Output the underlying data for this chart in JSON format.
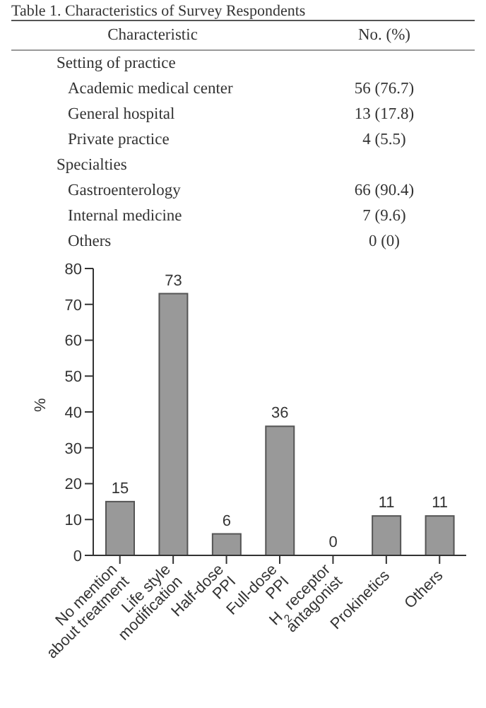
{
  "chart_data": [
    {
      "type": "other",
      "title": "Table 1. Characteristics of Survey Respondents",
      "xlabel": "Characteristic",
      "ylabel": "No. (%)",
      "categories": [
        "Setting of practice",
        "Academic medical center",
        "General hospital",
        "Private practice",
        "Specialties",
        "Gastroenterology",
        "Internal medicine",
        "Others"
      ],
      "values": [
        null,
        56,
        13,
        4,
        null,
        66,
        7,
        0
      ],
      "value_labels": [
        null,
        "56 (76.7)",
        "13 (17.8)",
        "4 (5.5)",
        null,
        "66 (90.4)",
        "7 (9.6)",
        "0 (0)"
      ]
    },
    {
      "type": "bar",
      "ylabel": "%",
      "categories": [
        "No mention\nabout treatment",
        "Life style\nmodification",
        "Half-dose\nPPI",
        "Full-dose\nPPI",
        "H$_{2}$ receptor\nantagonist",
        "Prokinetics",
        "Others"
      ],
      "values": [
        15,
        73,
        6,
        36,
        0,
        11,
        11
      ],
      "color": "#999999",
      "ylim": [
        0,
        80
      ],
      "yticks": [
        0,
        10,
        20,
        30,
        40,
        50,
        60,
        70,
        80
      ],
      "data_labels": true,
      "grid": false
    }
  ]
}
